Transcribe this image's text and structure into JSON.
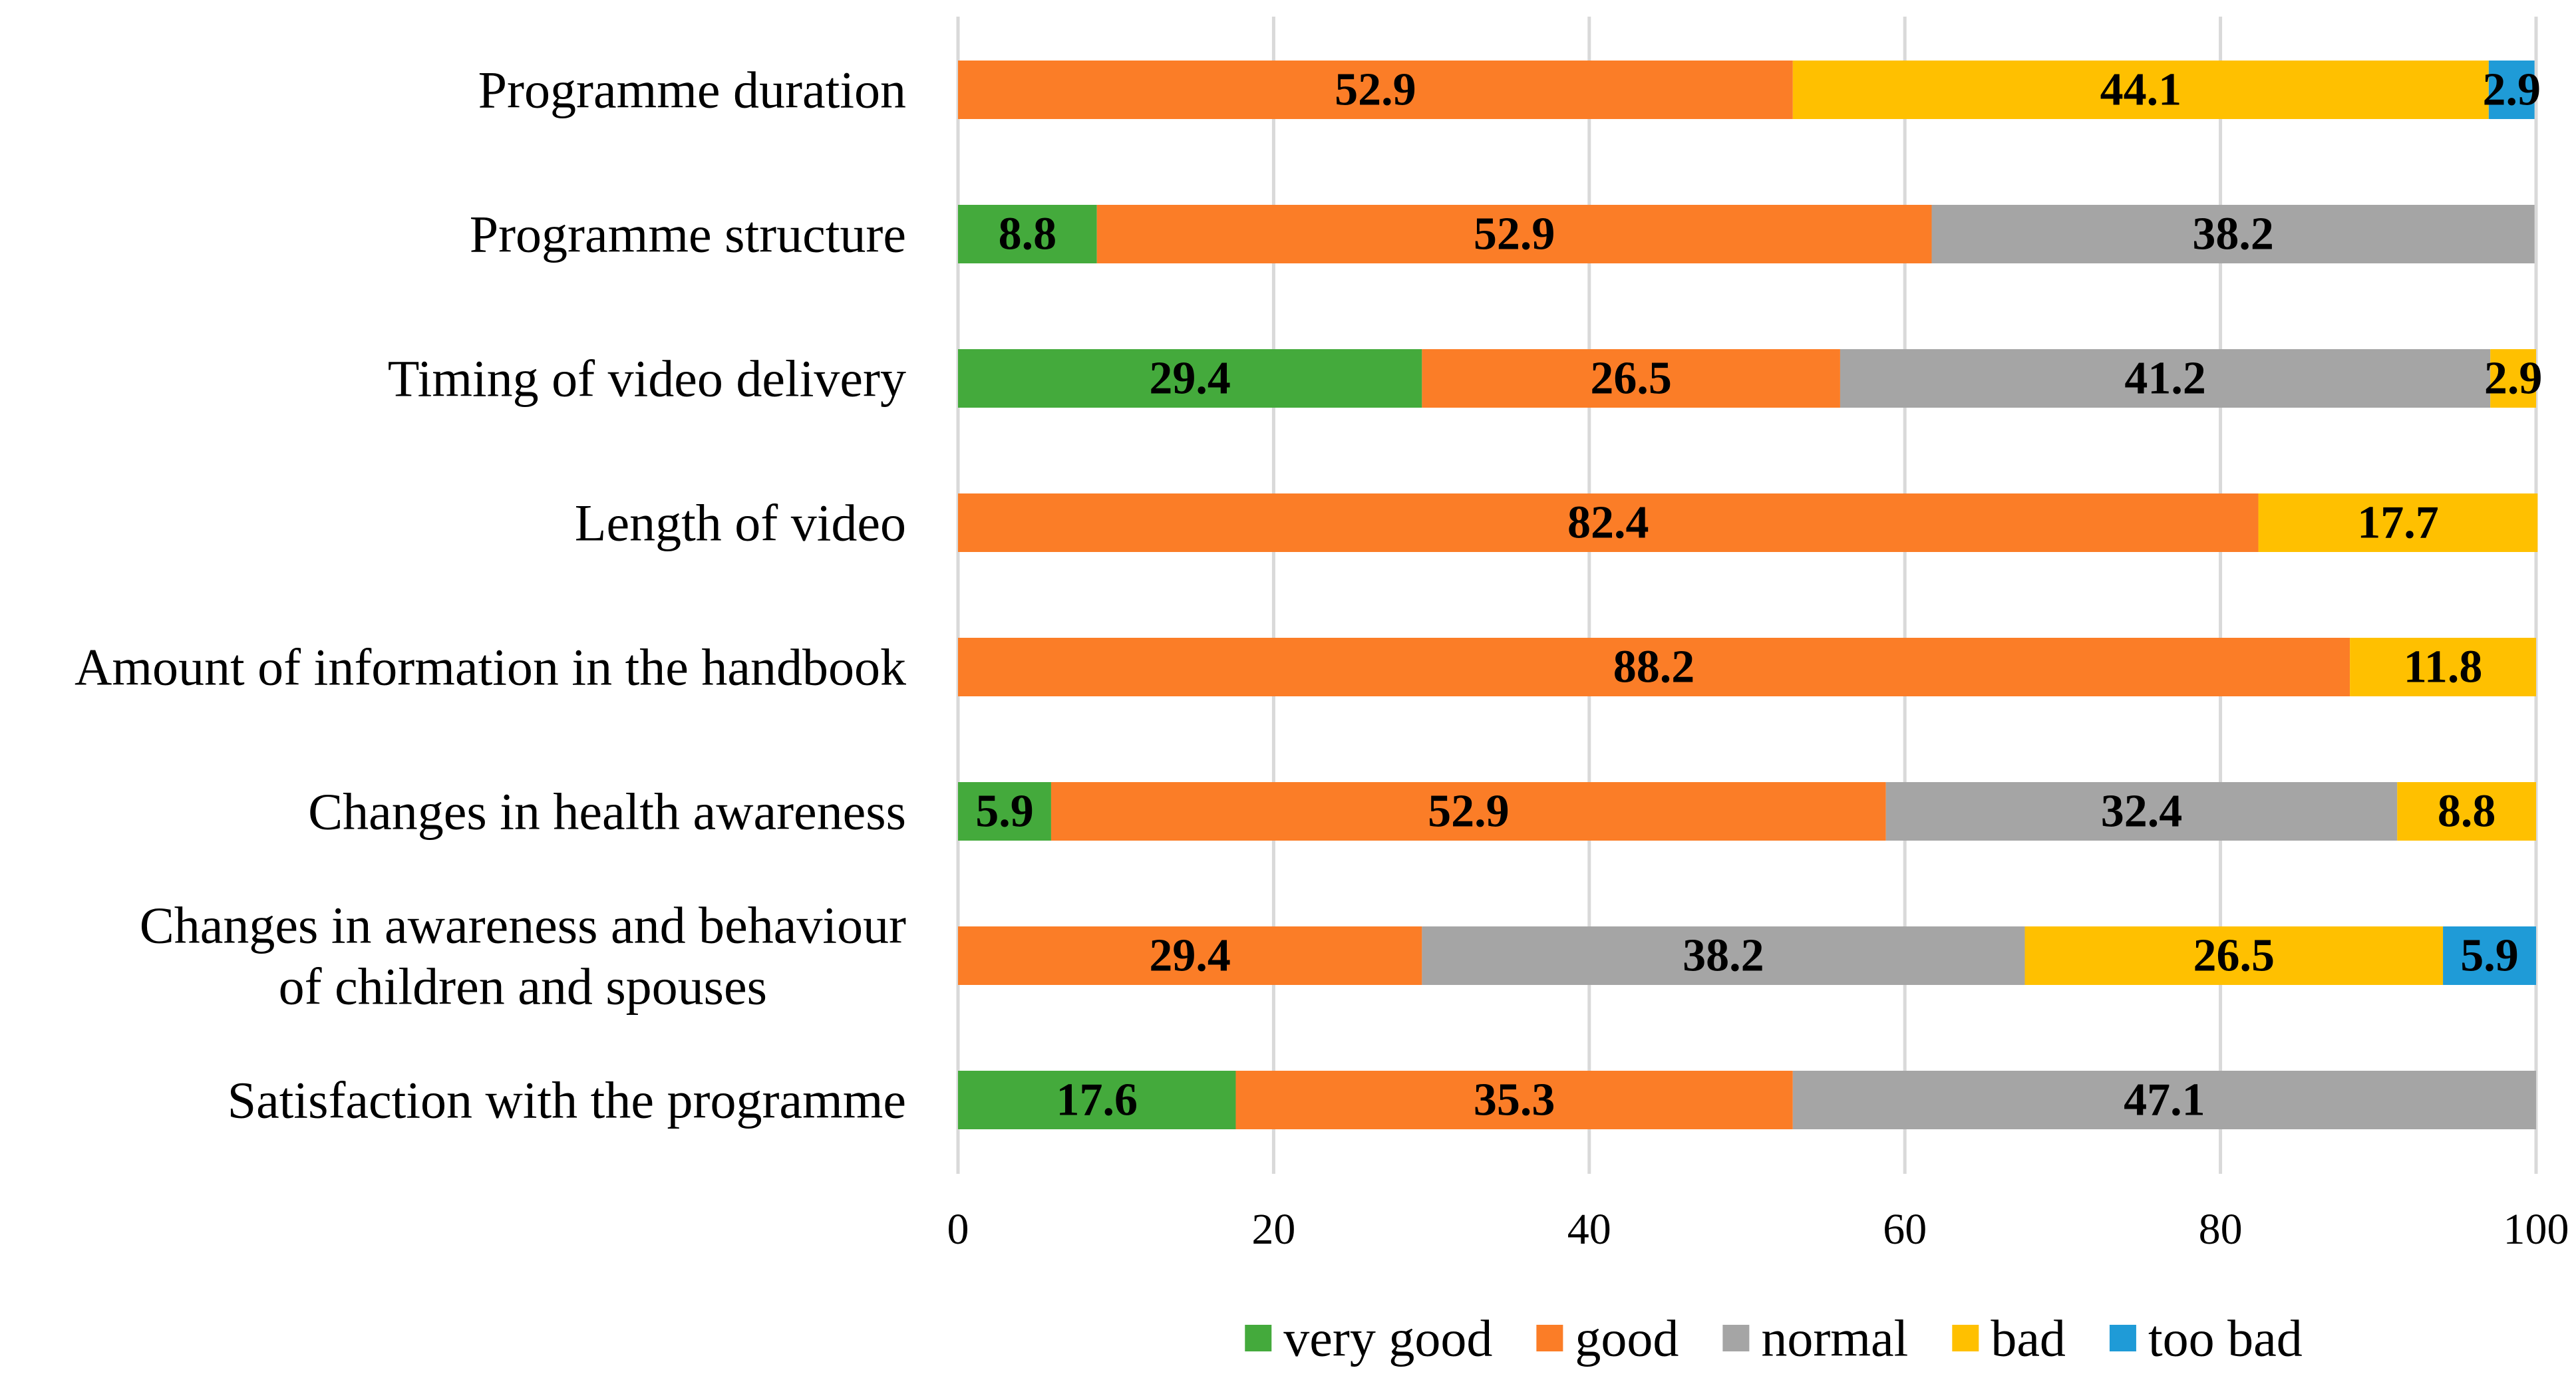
{
  "chart_data": {
    "type": "bar",
    "orientation": "horizontal",
    "stacked": true,
    "title": "",
    "xlabel": "",
    "ylabel": "",
    "xlim": [
      0,
      100
    ],
    "x_ticks": [
      0,
      20,
      40,
      60,
      80,
      100
    ],
    "grid": true,
    "legend_position": "bottom",
    "categories": [
      {
        "lines": [
          "Programme duration"
        ]
      },
      {
        "lines": [
          "Programme structure"
        ]
      },
      {
        "lines": [
          "Timing of video delivery"
        ]
      },
      {
        "lines": [
          "Length of video"
        ]
      },
      {
        "lines": [
          "Amount of information in the handbook"
        ]
      },
      {
        "lines": [
          "Changes in health awareness"
        ]
      },
      {
        "lines": [
          "Changes in awareness and behaviour",
          "of children and spouses"
        ]
      },
      {
        "lines": [
          "Satisfaction with the programme"
        ]
      }
    ],
    "series": [
      {
        "name": "very good",
        "color": "#44AA3C",
        "values": [
          0,
          8.8,
          29.4,
          0,
          0,
          5.9,
          0,
          17.6
        ]
      },
      {
        "name": "good",
        "color": "#FB7D27",
        "values": [
          52.9,
          52.9,
          26.5,
          82.4,
          88.2,
          52.9,
          29.4,
          35.3
        ]
      },
      {
        "name": "normal",
        "color": "#A5A5A5",
        "values": [
          0,
          38.2,
          41.2,
          0,
          0,
          32.4,
          38.2,
          47.1
        ]
      },
      {
        "name": "bad",
        "color": "#FFC000",
        "values": [
          44.1,
          0,
          2.9,
          17.7,
          11.8,
          8.8,
          26.5,
          0
        ]
      },
      {
        "name": "too bad",
        "color": "#1F9BD7",
        "values": [
          2.9,
          0,
          0,
          0,
          0,
          0,
          5.9,
          0
        ]
      }
    ]
  }
}
